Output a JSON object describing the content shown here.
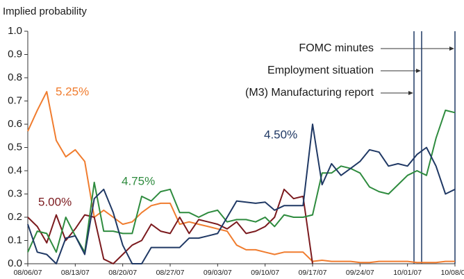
{
  "chart_data": {
    "type": "line",
    "y_label": "Implied probability",
    "categories": [
      "08/06/07",
      null,
      null,
      null,
      null,
      "08/13/07",
      null,
      null,
      null,
      null,
      "08/20/07",
      null,
      null,
      null,
      null,
      "08/27/07",
      null,
      null,
      null,
      null,
      "09/03/07",
      null,
      null,
      null,
      null,
      "09/10/07",
      null,
      null,
      null,
      null,
      "09/17/07",
      null,
      null,
      null,
      null,
      "09/24/07",
      null,
      null,
      null,
      null,
      "10/01/07",
      null,
      null,
      null,
      null,
      "10/08/07"
    ],
    "ylim": [
      0,
      1
    ],
    "yticks": [
      {
        "value": 0,
        "label": "0.0"
      },
      0.1,
      0.2,
      0.3,
      0.4,
      0.5,
      0.6,
      0.7,
      0.8,
      0.9,
      {
        "value": 1,
        "label": "1.0"
      }
    ],
    "series": [
      {
        "name": "5.25%",
        "color": "#f07c2e",
        "values": [
          0.57,
          0.66,
          0.74,
          0.53,
          0.46,
          0.49,
          0.44,
          0.2,
          0.23,
          0.2,
          0.17,
          0.18,
          0.22,
          0.25,
          0.26,
          0.26,
          0.17,
          0.18,
          0.17,
          0.16,
          0.15,
          0.14,
          0.08,
          0.06,
          0.06,
          0.05,
          0.04,
          0.05,
          0.05,
          0.05,
          0.01,
          0.015,
          0.01,
          0.01,
          0.01,
          0.005,
          0.005,
          0.01,
          0.01,
          0.01,
          0.01,
          0.005,
          0.005,
          0.005,
          0.01,
          0.01
        ]
      },
      {
        "name": "5.00%",
        "color": "#7b1a1e",
        "values": [
          0.2,
          0.16,
          0.09,
          0.21,
          0.1,
          0.15,
          0.21,
          0.2,
          0.02,
          0.0,
          0.04,
          0.08,
          0.1,
          0.17,
          0.14,
          0.13,
          0.2,
          0.13,
          0.19,
          0.18,
          0.17,
          0.15,
          0.18,
          0.13,
          0.14,
          0.16,
          0.2,
          0.32,
          0.28,
          0.29,
          0.0,
          null,
          null,
          null,
          null,
          null,
          null,
          null,
          null,
          null,
          null,
          null,
          null,
          null,
          null,
          null
        ]
      },
      {
        "name": "4.75%",
        "color": "#2e8b3e",
        "values": [
          0.05,
          0.14,
          0.13,
          0.05,
          0.2,
          0.12,
          0.05,
          0.35,
          0.14,
          0.14,
          0.13,
          0.13,
          0.29,
          0.27,
          0.31,
          0.32,
          0.22,
          0.22,
          0.2,
          0.22,
          0.23,
          0.18,
          0.19,
          0.19,
          0.18,
          0.2,
          0.16,
          0.21,
          0.2,
          0.2,
          0.21,
          0.39,
          0.39,
          0.42,
          0.41,
          0.39,
          0.33,
          0.31,
          0.3,
          0.34,
          0.38,
          0.4,
          0.38,
          0.54,
          0.66,
          0.65
        ]
      },
      {
        "name": "4.50%",
        "color": "#1f3864",
        "values": [
          0.17,
          0.05,
          0.04,
          0.0,
          0.11,
          0.12,
          0.04,
          0.28,
          0.32,
          0.22,
          0.08,
          0.0,
          0.0,
          0.07,
          0.07,
          0.07,
          0.07,
          0.11,
          0.11,
          0.12,
          0.13,
          0.2,
          0.27,
          0.265,
          0.26,
          0.265,
          0.23,
          0.25,
          0.25,
          0.25,
          0.6,
          0.34,
          0.43,
          0.38,
          0.41,
          0.44,
          0.49,
          0.48,
          0.42,
          0.43,
          0.42,
          0.47,
          0.5,
          0.42,
          0.3,
          0.32
        ]
      }
    ],
    "annotations": [
      "FOMC minutes",
      "Employment situation",
      "(M3) Manufacturing report"
    ]
  }
}
